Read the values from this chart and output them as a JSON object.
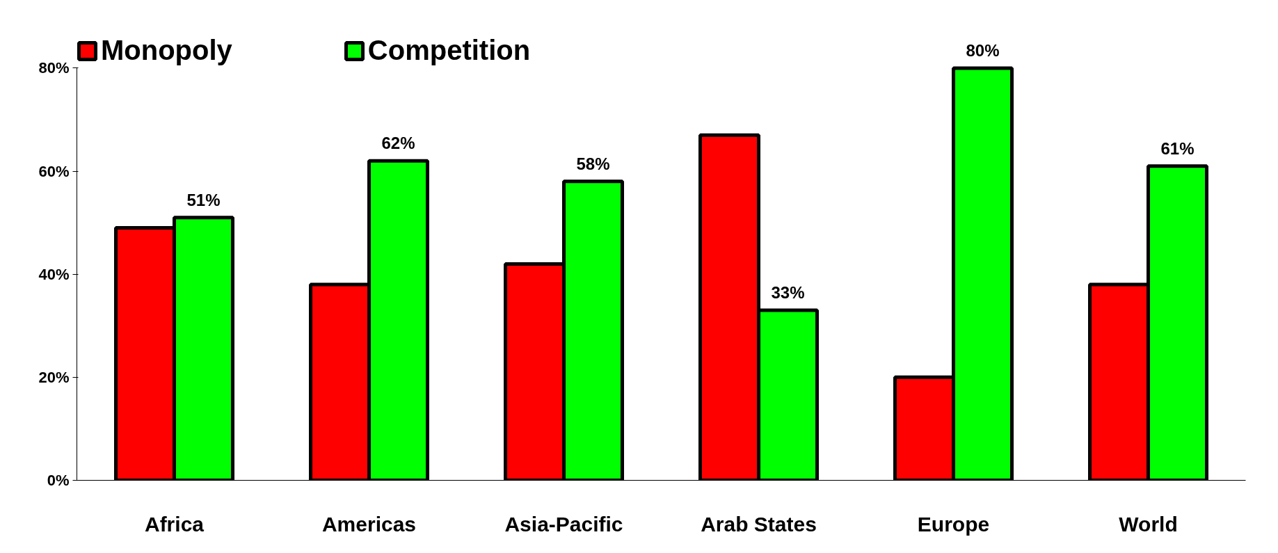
{
  "chart_data": {
    "type": "bar",
    "categories": [
      "Africa",
      "Americas",
      "Asia-Pacific",
      "Arab States",
      "Europe",
      "World"
    ],
    "series": [
      {
        "name": "Monopoly",
        "color": "#ff0000",
        "values": [
          49,
          38,
          42,
          67,
          20,
          38
        ]
      },
      {
        "name": "Competition",
        "color": "#00ff00",
        "values": [
          51,
          62,
          58,
          33,
          80,
          61
        ],
        "value_labels": [
          "51%",
          "62%",
          "58%",
          "33%",
          "80%",
          "61%"
        ]
      }
    ],
    "ylim": [
      0,
      80
    ],
    "yticks": [
      {
        "value": 0,
        "label": "0%"
      },
      {
        "value": 20,
        "label": "20%"
      },
      {
        "value": 40,
        "label": "40%"
      },
      {
        "value": 60,
        "label": "60%"
      },
      {
        "value": 80,
        "label": "80%"
      }
    ],
    "grid": false,
    "legend": "top left"
  }
}
